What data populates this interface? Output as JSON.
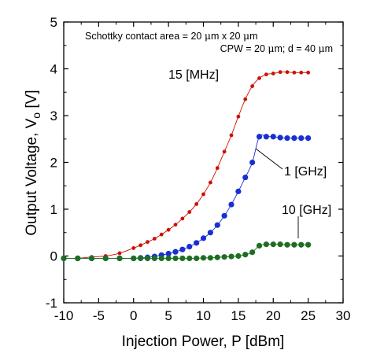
{
  "chart_data": {
    "type": "scatter",
    "xlabel": "Injection Power, P [dBm]",
    "ylabel_main": "Output Voltage, V",
    "ylabel_sub": "o",
    "ylabel_unit": " [V]",
    "xlim": [
      -10,
      30
    ],
    "ylim": [
      -1,
      5
    ],
    "xticks": [
      -10,
      -5,
      0,
      5,
      10,
      15,
      20,
      25,
      30
    ],
    "yticks": [
      -1,
      0,
      1,
      2,
      3,
      4,
      5
    ],
    "annotations": {
      "line1_before": "Schottky contact area = 20 ",
      "line1_mu": "μ",
      "line1_mid": "m x 20 ",
      "line1_after": "m",
      "line2_before": "CPW = 20 ",
      "line2_mu": "μ",
      "line2_after": "m; d = 40 ",
      "line2_end": "m"
    },
    "series": [
      {
        "name": "15 [MHz]",
        "color": "#cc1100",
        "markers": "small",
        "x": [
          -10,
          -8,
          -6,
          -4,
          -2,
          0,
          1,
          2,
          3,
          4,
          5,
          6,
          7,
          8,
          9,
          10,
          11,
          12,
          13,
          14,
          15,
          16,
          17,
          18,
          19,
          20,
          21,
          22,
          23,
          24,
          25
        ],
        "y": [
          -0.05,
          -0.05,
          -0.02,
          0.0,
          0.06,
          0.17,
          0.23,
          0.3,
          0.37,
          0.46,
          0.56,
          0.67,
          0.8,
          0.94,
          1.11,
          1.32,
          1.57,
          1.88,
          2.23,
          2.58,
          2.98,
          3.35,
          3.63,
          3.8,
          3.88,
          3.9,
          3.93,
          3.93,
          3.92,
          3.92,
          3.92
        ]
      },
      {
        "name": "1 [GHz]",
        "color": "#1a2fd1",
        "markers": "large",
        "x": [
          -10,
          -8,
          -6,
          -4,
          -2,
          0,
          1,
          2,
          3,
          4,
          5,
          6,
          7,
          8,
          9,
          10,
          11,
          12,
          13,
          14,
          15,
          16,
          17,
          18,
          19,
          20,
          21,
          22,
          23,
          24,
          25
        ],
        "y": [
          -0.05,
          -0.05,
          -0.05,
          -0.05,
          -0.05,
          -0.05,
          -0.04,
          -0.03,
          -0.01,
          0.02,
          0.05,
          0.09,
          0.14,
          0.2,
          0.28,
          0.38,
          0.5,
          0.66,
          0.86,
          1.1,
          1.38,
          1.68,
          2.0,
          2.55,
          2.55,
          2.55,
          2.53,
          2.52,
          2.52,
          2.52,
          2.52
        ]
      },
      {
        "name": "10 [GHz]",
        "color": "#1e6e22",
        "markers": "large",
        "x": [
          -10,
          -8,
          -6,
          -4,
          -2,
          0,
          1,
          2,
          3,
          4,
          5,
          6,
          7,
          8,
          9,
          10,
          11,
          12,
          13,
          14,
          15,
          16,
          17,
          18,
          19,
          20,
          21,
          22,
          23,
          24,
          25
        ],
        "y": [
          -0.05,
          -0.05,
          -0.05,
          -0.05,
          -0.05,
          -0.05,
          -0.05,
          -0.05,
          -0.05,
          -0.05,
          -0.05,
          -0.05,
          -0.05,
          -0.05,
          -0.05,
          -0.04,
          -0.04,
          -0.03,
          -0.02,
          -0.01,
          0.0,
          0.03,
          0.08,
          0.22,
          0.25,
          0.25,
          0.25,
          0.24,
          0.24,
          0.24,
          0.24
        ]
      }
    ]
  }
}
